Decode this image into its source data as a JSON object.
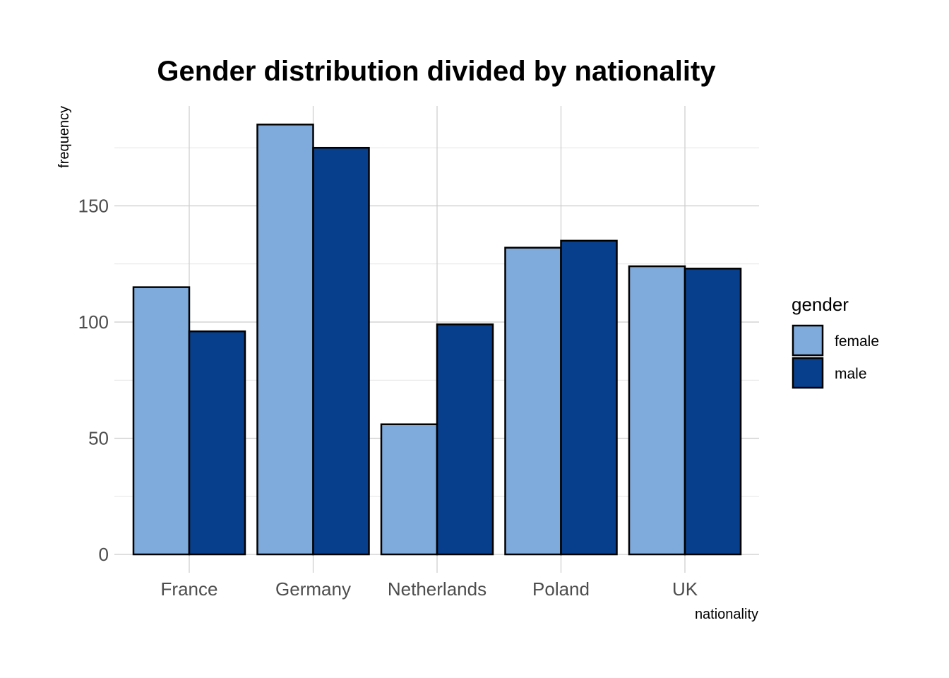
{
  "chart_data": {
    "type": "bar",
    "title": "Gender distribution divided by nationality",
    "xlabel": "nationality",
    "ylabel": "frequency",
    "categories": [
      "France",
      "Germany",
      "Netherlands",
      "Poland",
      "UK"
    ],
    "series": [
      {
        "name": "female",
        "color": "#7eaadc",
        "values": [
          115,
          185,
          56,
          132,
          124
        ]
      },
      {
        "name": "male",
        "color": "#083f8c",
        "values": [
          96,
          175,
          99,
          135,
          123
        ]
      }
    ],
    "ylim": [
      0,
      193
    ],
    "yticks": [
      0,
      50,
      100,
      150
    ],
    "grid": true,
    "legend": {
      "title": "gender",
      "position": "right",
      "entries": [
        "female",
        "male"
      ]
    }
  }
}
